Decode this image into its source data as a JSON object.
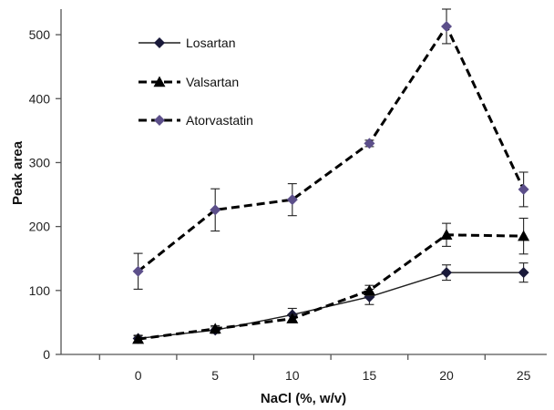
{
  "chart_data": {
    "type": "line",
    "xlabel": "NaCl (%, w/v)",
    "ylabel": "Peak area",
    "xlim": [
      -5,
      26.5
    ],
    "ylim": [
      0,
      540
    ],
    "x_ticks": [
      0,
      5,
      10,
      15,
      20,
      25
    ],
    "y_ticks": [
      0,
      100,
      200,
      300,
      400,
      500
    ],
    "grid": false,
    "legend_position": "top-left",
    "series": [
      {
        "name": "Losartan",
        "marker": "diamond",
        "line_style": "solid",
        "color": "#1f1f1f",
        "marker_color": "#1a1a3a",
        "x": [
          0,
          5,
          10,
          15,
          20,
          25
        ],
        "y": [
          25,
          38,
          62,
          90,
          128,
          128
        ],
        "error": [
          5,
          5,
          10,
          12,
          12,
          15
        ]
      },
      {
        "name": "Valsartan",
        "marker": "triangle",
        "line_style": "dashed",
        "color": "#000000",
        "marker_color": "#000000",
        "x": [
          0,
          5,
          10,
          15,
          20,
          25
        ],
        "y": [
          24,
          40,
          56,
          100,
          187,
          185
        ],
        "error": [
          5,
          5,
          6,
          8,
          18,
          28
        ]
      },
      {
        "name": "Atorvastatin",
        "marker": "diamond",
        "line_style": "dashed",
        "color": "#000000",
        "marker_color": "#5c4f8a",
        "x": [
          0,
          5,
          10,
          15,
          20,
          25
        ],
        "y": [
          130,
          226,
          242,
          330,
          513,
          258
        ],
        "error": [
          28,
          33,
          25,
          5,
          27,
          27
        ]
      }
    ]
  }
}
